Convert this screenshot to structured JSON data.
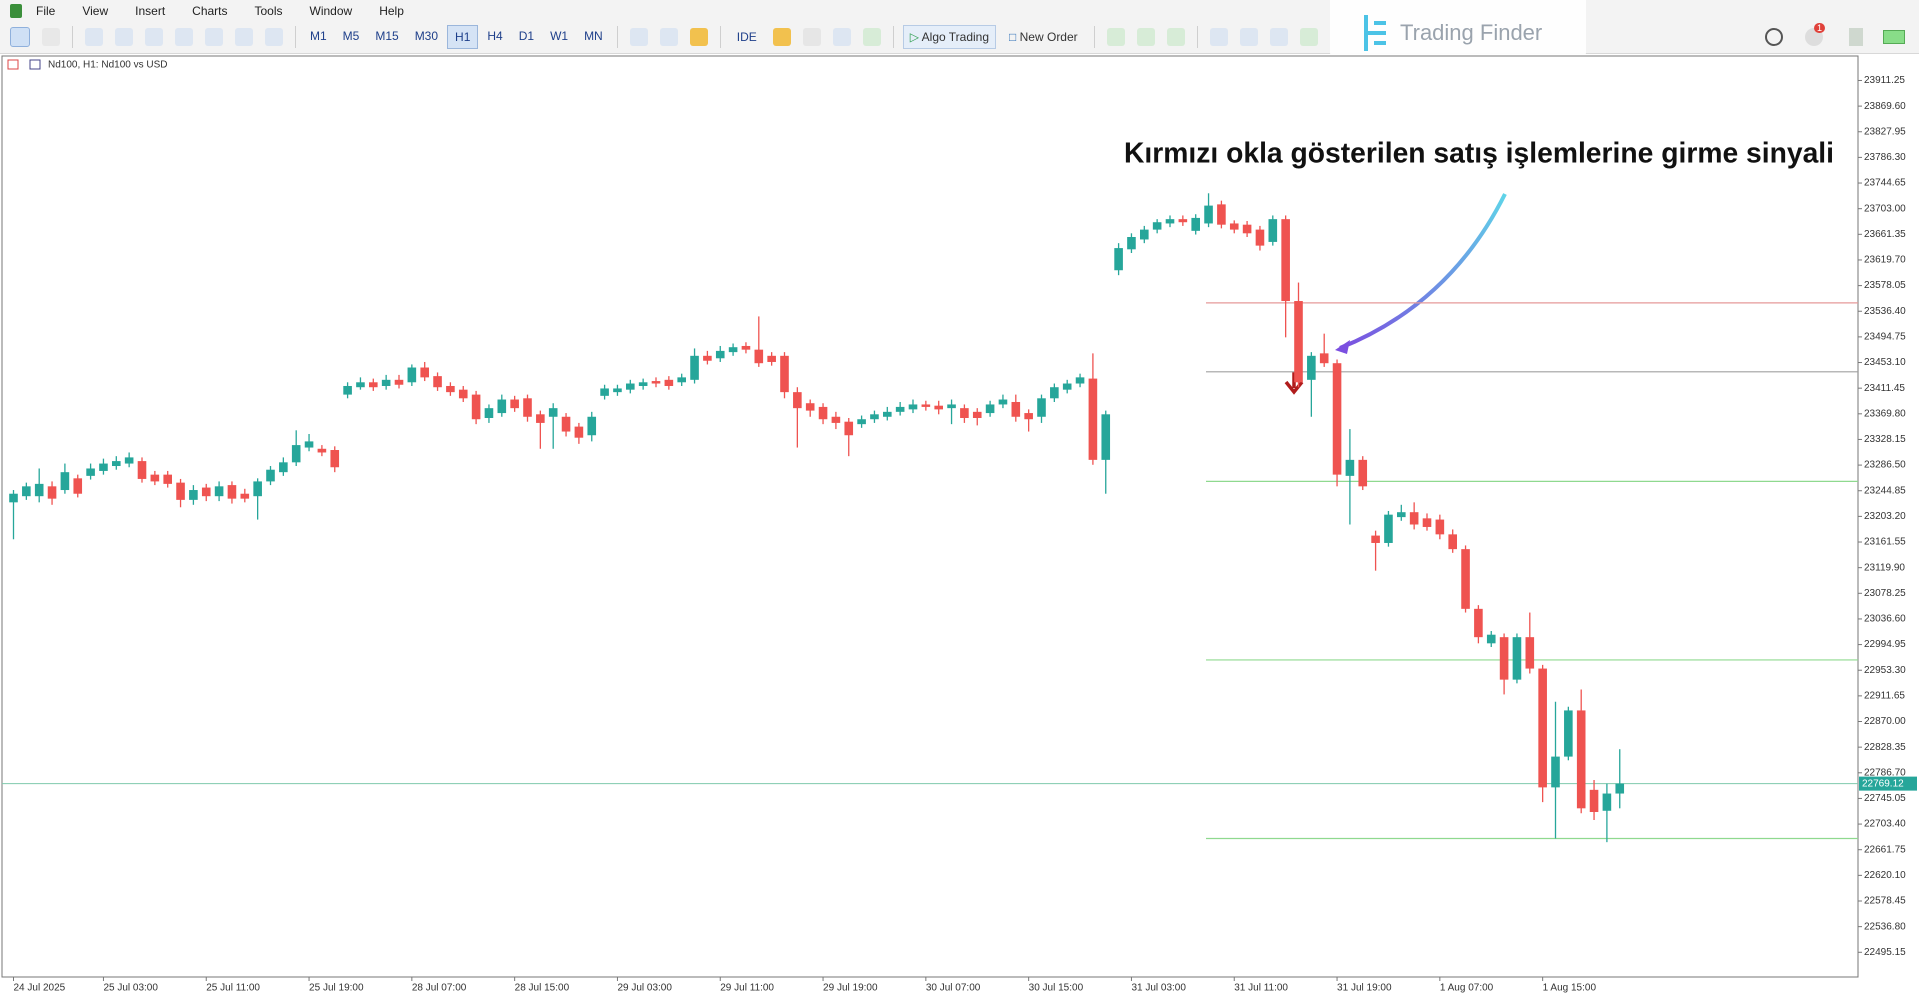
{
  "menu": [
    "File",
    "View",
    "Insert",
    "Charts",
    "Tools",
    "Window",
    "Help"
  ],
  "toolbar": {
    "timeframes": [
      "M1",
      "M5",
      "M15",
      "M30",
      "H1",
      "H4",
      "D1",
      "W1",
      "MN"
    ],
    "active_timeframe_index": 4,
    "ide": "IDE",
    "algo_trading": "Algo Trading",
    "new_order": "New Order",
    "notifications": "1"
  },
  "logo": "Trading Finder",
  "chart_data": {
    "type": "candlestick",
    "symbol_label": "Nd100, H1:  Nd100 vs USD",
    "annotation": "Kırmızı okla gösterilen satış işlemlerine girme sinyali",
    "up_color": "#26a69a",
    "down_color": "#ef5350",
    "grid": false,
    "price_line_color": "#7fc9ad",
    "ylim": [
      22455,
      23951
    ],
    "yticks": [
      23911.25,
      {
        "value": 23869.6,
        "label": "23869.60"
      },
      23827.95,
      {
        "value": 23786.3,
        "label": "23786.30"
      },
      23744.65,
      {
        "value": 23703,
        "label": "23703.00"
      },
      23661.35,
      {
        "value": 23619.7,
        "label": "23619.70"
      },
      23578.05,
      {
        "value": 23536.4,
        "label": "23536.40"
      },
      23494.75,
      {
        "value": 23453.1,
        "label": "23453.10"
      },
      23411.45,
      {
        "value": 23369.8,
        "label": "23369.80"
      },
      23328.15,
      {
        "value": 23286.5,
        "label": "23286.50"
      },
      23244.85,
      {
        "value": 23203.2,
        "label": "23203.20"
      },
      23161.55,
      {
        "value": 23119.9,
        "label": "23119.90"
      },
      23078.25,
      {
        "value": 23036.6,
        "label": "23036.60"
      },
      22994.95,
      {
        "value": 22953.3,
        "label": "22953.30"
      },
      22911.65,
      {
        "value": 22870,
        "label": "22870.00"
      },
      22828.35,
      {
        "value": 22786.7,
        "label": "22786.70"
      },
      22745.05,
      {
        "value": 22703.4,
        "label": "22703.40"
      },
      22661.75,
      {
        "value": 22620.1,
        "label": "22620.10"
      },
      22578.45,
      {
        "value": 22536.8,
        "label": "22536.80"
      },
      22495.15
    ],
    "levels": [
      {
        "value": 23550,
        "color": "#e59a9a"
      },
      {
        "value": 23438,
        "color": "#a0a0a0"
      },
      {
        "value": 23260,
        "color": "#8fd98f"
      },
      {
        "value": 22970,
        "color": "#8fd98f"
      },
      {
        "value": 22680,
        "color": "#8fd98f"
      }
    ],
    "categories": [
      "24 Jul 2025",
      null,
      null,
      null,
      null,
      null,
      null,
      "25 Jul 03:00",
      null,
      null,
      null,
      null,
      null,
      null,
      null,
      "25 Jul 11:00",
      null,
      null,
      null,
      null,
      null,
      null,
      null,
      "25 Jul 19:00",
      null,
      null,
      null,
      null,
      null,
      null,
      null,
      "28 Jul 07:00",
      null,
      null,
      null,
      null,
      null,
      null,
      null,
      "28 Jul 15:00",
      null,
      null,
      null,
      null,
      null,
      null,
      null,
      "29 Jul 03:00",
      null,
      null,
      null,
      null,
      null,
      null,
      null,
      "29 Jul 11:00",
      null,
      null,
      null,
      null,
      null,
      null,
      null,
      "29 Jul 19:00",
      null,
      null,
      null,
      null,
      null,
      null,
      null,
      "30 Jul 07:00",
      null,
      null,
      null,
      null,
      null,
      null,
      null,
      "30 Jul 15:00",
      null,
      null,
      null,
      null,
      null,
      null,
      null,
      "31 Jul 03:00",
      null,
      null,
      null,
      null,
      null,
      null,
      null,
      "31 Jul 11:00",
      null,
      null,
      null,
      null,
      null,
      null,
      null,
      "31 Jul 19:00",
      null,
      null,
      null,
      null,
      null,
      null,
      null,
      "1 Aug 07:00",
      null,
      null,
      null,
      null,
      null,
      null,
      null,
      "1 Aug 15:00",
      null,
      null,
      null,
      null,
      null,
      null
    ],
    "ohlc": [
      [
        23226,
        23246,
        23166,
        23240
      ],
      [
        23236,
        23258,
        23230,
        23252
      ],
      [
        23236,
        23281,
        23226,
        23256
      ],
      [
        23252,
        23260,
        23222,
        23232
      ],
      [
        23246,
        23289,
        23240,
        23275
      ],
      [
        23265,
        23271,
        23234,
        23240
      ],
      [
        23269,
        23289,
        23263,
        23281
      ],
      [
        23277,
        23297,
        23271,
        23289
      ],
      [
        23285,
        23301,
        23279,
        23293
      ],
      [
        23289,
        23307,
        23283,
        23299
      ],
      [
        23293,
        23299,
        23258,
        23264
      ],
      [
        23271,
        23277,
        23254,
        23260
      ],
      [
        23271,
        23277,
        23250,
        23256
      ],
      [
        23258,
        23264,
        23218,
        23230
      ],
      [
        23230,
        23254,
        23222,
        23246
      ],
      [
        23250,
        23256,
        23228,
        23236
      ],
      [
        23236,
        23260,
        23228,
        23252
      ],
      [
        23254,
        23260,
        23224,
        23232
      ],
      [
        23240,
        23248,
        23226,
        23232
      ],
      [
        23236,
        23265,
        23198,
        23260
      ],
      [
        23260,
        23285,
        23254,
        23279
      ],
      [
        23275,
        23299,
        23269,
        23291
      ],
      [
        23291,
        23343,
        23285,
        23319
      ],
      [
        23315,
        23337,
        23309,
        23325
      ],
      [
        23313,
        23319,
        23301,
        23307
      ],
      [
        23311,
        23317,
        23275,
        23283
      ],
      [
        23401,
        23421,
        23395,
        23415
      ],
      [
        23413,
        23429,
        23409,
        23421
      ],
      [
        23421,
        23427,
        23407,
        23413
      ],
      [
        23415,
        23433,
        23409,
        23425
      ],
      [
        23425,
        23433,
        23411,
        23417
      ],
      [
        23421,
        23450,
        23415,
        23445
      ],
      [
        23445,
        23454,
        23423,
        23429
      ],
      [
        23431,
        23437,
        23407,
        23413
      ],
      [
        23415,
        23421,
        23399,
        23405
      ],
      [
        23409,
        23415,
        23389,
        23395
      ],
      [
        23401,
        23407,
        23353,
        23361
      ],
      [
        23363,
        23385,
        23355,
        23379
      ],
      [
        23371,
        23401,
        23365,
        23393
      ],
      [
        23393,
        23399,
        23373,
        23379
      ],
      [
        23395,
        23401,
        23357,
        23365
      ],
      [
        23369,
        23375,
        23313,
        23355
      ],
      [
        23365,
        23387,
        23313,
        23379
      ],
      [
        23365,
        23371,
        23333,
        23341
      ],
      [
        23349,
        23355,
        23321,
        23331
      ],
      [
        23335,
        23373,
        23325,
        23365
      ],
      [
        23399,
        23417,
        23393,
        23411
      ],
      [
        23405,
        23417,
        23399,
        23411
      ],
      [
        23409,
        23425,
        23403,
        23419
      ],
      [
        23415,
        23427,
        23409,
        23421
      ],
      [
        23423,
        23429,
        23413,
        23419
      ],
      [
        23425,
        23431,
        23409,
        23415
      ],
      [
        23421,
        23435,
        23415,
        23429
      ],
      [
        23425,
        23476,
        23419,
        23464
      ],
      [
        23464,
        23472,
        23450,
        23456
      ],
      [
        23460,
        23480,
        23454,
        23472
      ],
      [
        23470,
        23484,
        23464,
        23478
      ],
      [
        23480,
        23486,
        23468,
        23474
      ],
      [
        23474,
        23528,
        23446,
        23452
      ],
      [
        23464,
        23470,
        23448,
        23454
      ],
      [
        23464,
        23470,
        23395,
        23405
      ],
      [
        23405,
        23413,
        23315,
        23379
      ],
      [
        23387,
        23393,
        23365,
        23375
      ],
      [
        23381,
        23387,
        23353,
        23361
      ],
      [
        23365,
        23373,
        23345,
        23355
      ],
      [
        23357,
        23363,
        23301,
        23335
      ],
      [
        23353,
        23367,
        23347,
        23361
      ],
      [
        23361,
        23375,
        23355,
        23369
      ],
      [
        23365,
        23381,
        23359,
        23373
      ],
      [
        23373,
        23389,
        23367,
        23381
      ],
      [
        23377,
        23393,
        23371,
        23385
      ],
      [
        23385,
        23391,
        23375,
        23381
      ],
      [
        23383,
        23391,
        23369,
        23377
      ],
      [
        23379,
        23393,
        23353,
        23385
      ],
      [
        23379,
        23385,
        23355,
        23363
      ],
      [
        23373,
        23379,
        23351,
        23363
      ],
      [
        23371,
        23391,
        23365,
        23385
      ],
      [
        23385,
        23401,
        23379,
        23393
      ],
      [
        23389,
        23401,
        23357,
        23365
      ],
      [
        23371,
        23377,
        23341,
        23361
      ],
      [
        23365,
        23401,
        23355,
        23395
      ],
      [
        23395,
        23419,
        23389,
        23413
      ],
      [
        23409,
        23425,
        23403,
        23419
      ],
      [
        23419,
        23435,
        23413,
        23429
      ],
      [
        23427,
        23468,
        23287,
        23295
      ],
      [
        23295,
        23375,
        23240,
        23369
      ],
      [
        23603,
        23647,
        23595,
        23639
      ],
      [
        23637,
        23663,
        23631,
        23657
      ],
      [
        23653,
        23675,
        23647,
        23669
      ],
      [
        23669,
        23686,
        23663,
        23681
      ],
      [
        23679,
        23692,
        23673,
        23686
      ],
      [
        23686,
        23692,
        23675,
        23681
      ],
      [
        23667,
        23694,
        23661,
        23688
      ],
      [
        23679,
        23728,
        23673,
        23708
      ],
      [
        23710,
        23716,
        23671,
        23677
      ],
      [
        23679,
        23684,
        23663,
        23669
      ],
      [
        23677,
        23683,
        23657,
        23663
      ],
      [
        23669,
        23675,
        23635,
        23643
      ],
      [
        23649,
        23692,
        23643,
        23686
      ],
      [
        23686,
        23692,
        23494,
        23553
      ],
      [
        23553,
        23583,
        23413,
        23421
      ],
      [
        23425,
        23470,
        23365,
        23464
      ],
      [
        23468,
        23500,
        23446,
        23452
      ],
      [
        23452,
        23458,
        23252,
        23271
      ],
      [
        23269,
        23345,
        23190,
        23295
      ],
      [
        23295,
        23301,
        23246,
        23252
      ],
      [
        23172,
        23180,
        23115,
        23160
      ],
      [
        23160,
        23212,
        23154,
        23206
      ],
      [
        23202,
        23222,
        23196,
        23210
      ],
      [
        23210,
        23226,
        23182,
        23190
      ],
      [
        23200,
        23208,
        23180,
        23186
      ],
      [
        23198,
        23206,
        23166,
        23174
      ],
      [
        23174,
        23182,
        23144,
        23150
      ],
      [
        23150,
        23156,
        23047,
        23053
      ],
      [
        23053,
        23059,
        22997,
        23007
      ],
      [
        22997,
        23017,
        22991,
        23011
      ],
      [
        23007,
        23013,
        22914,
        22938
      ],
      [
        22938,
        23013,
        22932,
        23007
      ],
      [
        23007,
        23047,
        22948,
        22956
      ],
      [
        22956,
        22962,
        22739,
        22763
      ],
      [
        22763,
        22902,
        22680,
        22813
      ],
      [
        22813,
        22894,
        22807,
        22888
      ],
      [
        22888,
        22922,
        22721,
        22729
      ],
      [
        22759,
        22775,
        22710,
        22723
      ],
      [
        22725,
        22769,
        22674,
        22753
      ],
      [
        22753,
        22825,
        22729,
        22769.12
      ]
    ]
  }
}
